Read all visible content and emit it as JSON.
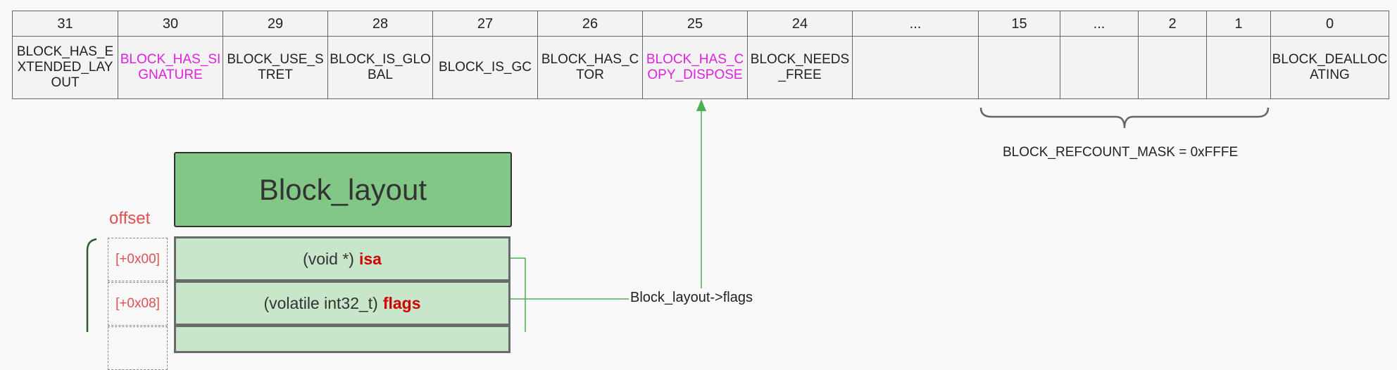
{
  "bit_table": {
    "columns": [
      {
        "bit": "31",
        "name": "BLOCK_HAS_EXTENDED_LAYOUT",
        "highlight": false
      },
      {
        "bit": "30",
        "name": "BLOCK_HAS_SIGNATURE",
        "highlight": true
      },
      {
        "bit": "29",
        "name": "BLOCK_USE_STRET",
        "highlight": false
      },
      {
        "bit": "28",
        "name": "BLOCK_IS_GLOBAL",
        "highlight": false
      },
      {
        "bit": "27",
        "name": "BLOCK_IS_GC",
        "highlight": false
      },
      {
        "bit": "26",
        "name": "BLOCK_HAS_CTOR",
        "highlight": false
      },
      {
        "bit": "25",
        "name": "BLOCK_HAS_COPY_DISPOSE",
        "highlight": true
      },
      {
        "bit": "24",
        "name": "BLOCK_NEEDS_FREE",
        "highlight": false
      },
      {
        "bit": "...",
        "name": "",
        "highlight": false
      },
      {
        "bit": "15",
        "name": "",
        "highlight": false
      },
      {
        "bit": "...",
        "name": "",
        "highlight": false
      },
      {
        "bit": "2",
        "name": "",
        "highlight": false
      },
      {
        "bit": "1",
        "name": "",
        "highlight": false
      },
      {
        "bit": "0",
        "name": "BLOCK_DEALLOCATING",
        "highlight": false
      }
    ],
    "highlight_color": "#e020e0"
  },
  "refcount_mask": {
    "label": "BLOCK_REFCOUNT_MASK = 0xFFFE"
  },
  "layout": {
    "title": "Block_layout",
    "offset_header": "offset",
    "rows": [
      {
        "offset": "[+0x00]",
        "type": "(void *)",
        "field": "isa"
      },
      {
        "offset": "[+0x08]",
        "type": "(volatile int32_t)",
        "field": "flags"
      },
      {
        "offset": "",
        "type": "",
        "field": ""
      }
    ]
  },
  "flags_arrow": {
    "label": "Block_layout->flags"
  },
  "colors": {
    "title_fill": "#82c785",
    "row_fill": "#c8e6c9",
    "field_text": "#d00000",
    "offset_text": "#e05050",
    "arrow": "#4caf50",
    "brace_left": "#2e5e2e"
  }
}
